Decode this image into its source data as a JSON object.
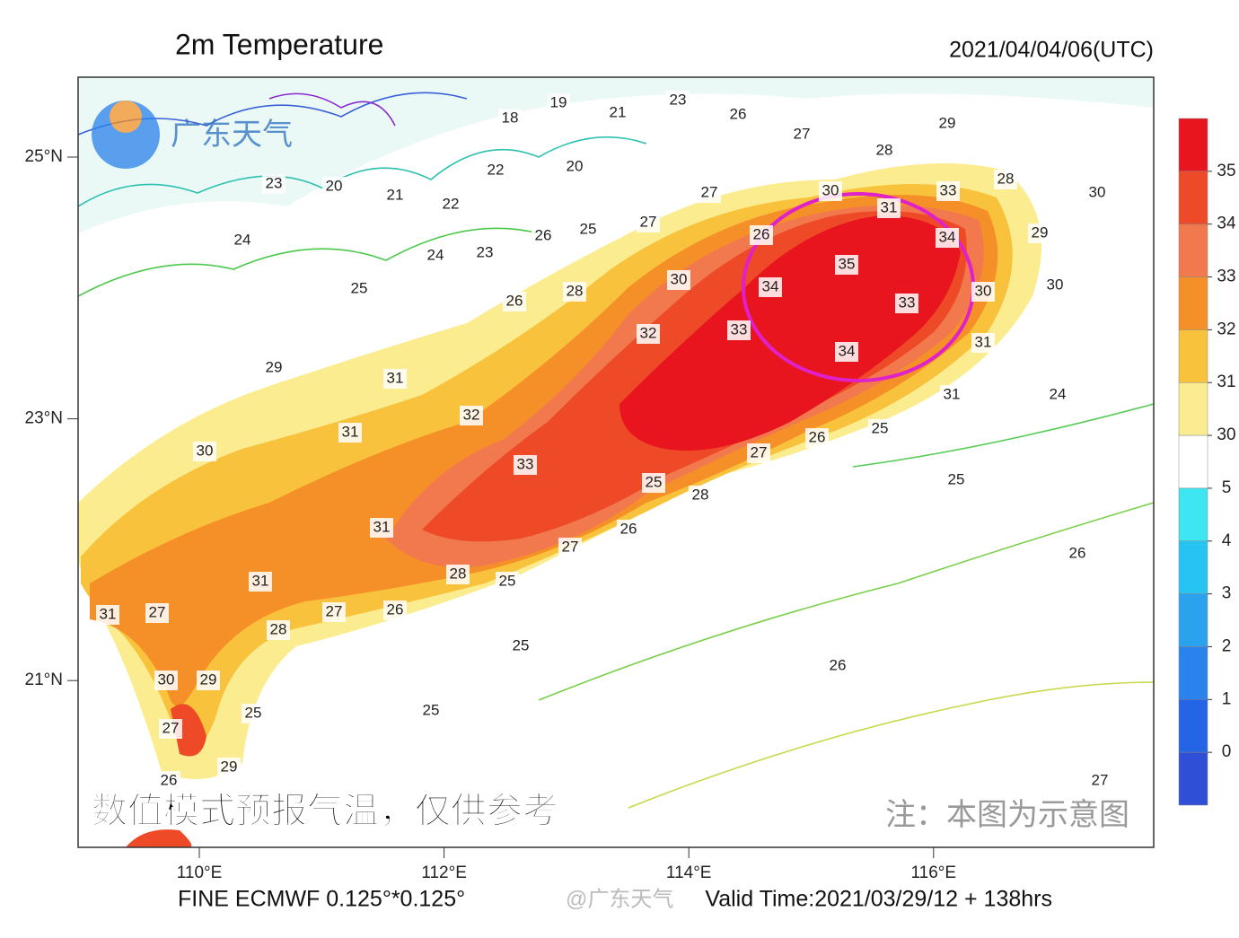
{
  "header": {
    "title": "2m Temperature",
    "time": "2021/04/04/06(UTC)"
  },
  "map": {
    "logo": "广东天气",
    "lat_ticks": [
      {
        "value": 25,
        "label": "25°N"
      },
      {
        "value": 23,
        "label": "23°N"
      },
      {
        "value": 21,
        "label": "21°N"
      }
    ],
    "lon_ticks": [
      {
        "value": 110,
        "label": "110°E"
      },
      {
        "value": 112,
        "label": "112°E"
      },
      {
        "value": 114,
        "label": "114°E"
      },
      {
        "value": 116,
        "label": "116°E"
      }
    ],
    "contour_labels": [
      23,
      20,
      21,
      22,
      22,
      18,
      19,
      21,
      23,
      26,
      27,
      28,
      29,
      20,
      25,
      27,
      27,
      26,
      23,
      24,
      24,
      25,
      26,
      28,
      30,
      26,
      30,
      31,
      33,
      28,
      30,
      29,
      34,
      35,
      34,
      33,
      30,
      30,
      33,
      32,
      34,
      31,
      31,
      24,
      29,
      31,
      31,
      32,
      30,
      33,
      25,
      28,
      27,
      26,
      25,
      25,
      31,
      31,
      28,
      25,
      27,
      26,
      26,
      31,
      27,
      27,
      26,
      28,
      25,
      26,
      30,
      29,
      25,
      25,
      27,
      29,
      26,
      27
    ],
    "caption": "数值模式预报气温，仅供参考",
    "note": "注：本图为示意图"
  },
  "colorbar": {
    "labels": [
      "35",
      "34",
      "33",
      "32",
      "31",
      "30",
      "5",
      "4",
      "3",
      "2",
      "1",
      "0"
    ],
    "colors": [
      "#e8141e",
      "#ee4a28",
      "#f2784e",
      "#f59028",
      "#f9c23c",
      "#fbec90",
      "#ffffff",
      "#3ee6f2",
      "#26c4f2",
      "#2aa2ee",
      "#2a82ec",
      "#2464e6",
      "#2f4fd6"
    ]
  },
  "footer": {
    "model": "FINE ECMWF 0.125°*0.125°",
    "watermark": "@广东天气",
    "valid": "Valid Time:2021/03/29/12 + 138hrs"
  }
}
